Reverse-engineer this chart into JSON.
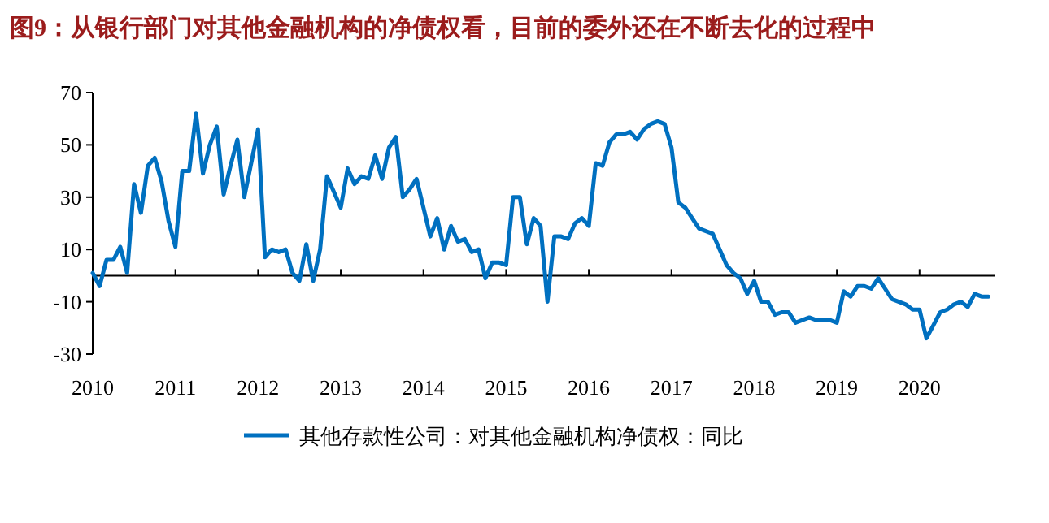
{
  "chart_data": {
    "type": "line",
    "title": "图9：从银行部门对其他金融机构的净债权看，目前的委外还在不断去化的过程中",
    "x": [
      "2010-01",
      "2010-02",
      "2010-03",
      "2010-04",
      "2010-05",
      "2010-06",
      "2010-07",
      "2010-08",
      "2010-09",
      "2010-10",
      "2010-11",
      "2010-12",
      "2011-01",
      "2011-02",
      "2011-03",
      "2011-04",
      "2011-05",
      "2011-06",
      "2011-07",
      "2011-08",
      "2011-09",
      "2011-10",
      "2011-11",
      "2011-12",
      "2012-01",
      "2012-02",
      "2012-03",
      "2012-04",
      "2012-05",
      "2012-06",
      "2012-07",
      "2012-08",
      "2012-09",
      "2012-10",
      "2012-11",
      "2012-12",
      "2013-01",
      "2013-02",
      "2013-03",
      "2013-04",
      "2013-05",
      "2013-06",
      "2013-07",
      "2013-08",
      "2013-09",
      "2013-10",
      "2013-11",
      "2013-12",
      "2014-01",
      "2014-02",
      "2014-03",
      "2014-04",
      "2014-05",
      "2014-06",
      "2014-07",
      "2014-08",
      "2014-09",
      "2014-10",
      "2014-11",
      "2014-12",
      "2015-01",
      "2015-02",
      "2015-03",
      "2015-04",
      "2015-05",
      "2015-06",
      "2015-07",
      "2015-08",
      "2015-09",
      "2015-10",
      "2015-11",
      "2015-12",
      "2016-01",
      "2016-02",
      "2016-03",
      "2016-04",
      "2016-05",
      "2016-06",
      "2016-07",
      "2016-08",
      "2016-09",
      "2016-10",
      "2016-11",
      "2016-12",
      "2017-01",
      "2017-02",
      "2017-03",
      "2017-04",
      "2017-05",
      "2017-06",
      "2017-07",
      "2017-08",
      "2017-09",
      "2017-10",
      "2017-11",
      "2017-12",
      "2018-01",
      "2018-02",
      "2018-03",
      "2018-04",
      "2018-05",
      "2018-06",
      "2018-07",
      "2018-08",
      "2018-09",
      "2018-10",
      "2018-11",
      "2018-12",
      "2019-01",
      "2019-02",
      "2019-03",
      "2019-04",
      "2019-05",
      "2019-06",
      "2019-07",
      "2019-08",
      "2019-09",
      "2019-10",
      "2019-11",
      "2019-12",
      "2020-01",
      "2020-02",
      "2020-03",
      "2020-04",
      "2020-05",
      "2020-06",
      "2020-07",
      "2020-08",
      "2020-09",
      "2020-10",
      "2020-11"
    ],
    "series": [
      {
        "name": "其他存款性公司：对其他金融机构净债权：同比",
        "color": "#0070c0",
        "values": [
          1,
          -4,
          6,
          6,
          11,
          1,
          35,
          24,
          42,
          45,
          36,
          21,
          11,
          40,
          40,
          62,
          39,
          50,
          57,
          31,
          42,
          52,
          30,
          43,
          56,
          7,
          10,
          9,
          10,
          1,
          -2,
          12,
          -2,
          10,
          38,
          32,
          26,
          41,
          35,
          38,
          37,
          46,
          37,
          49,
          53,
          30,
          33,
          37,
          26,
          15,
          22,
          10,
          19,
          13,
          14,
          9,
          10,
          -1,
          5,
          5,
          4,
          30,
          30,
          12,
          22,
          19,
          -10,
          15,
          15,
          14,
          20,
          22,
          19,
          43,
          42,
          51,
          54,
          54,
          55,
          52,
          56,
          58,
          59,
          58,
          49,
          28,
          26,
          22,
          18,
          17,
          16,
          10,
          4,
          1,
          -1,
          -7,
          -2,
          -10,
          -10,
          -15,
          -14,
          -14,
          -18,
          -17,
          -16,
          -17,
          -17,
          -17,
          -18,
          -6,
          -8,
          -4,
          -4,
          -5,
          -1,
          -5,
          -9,
          -10,
          -11,
          -13,
          -13,
          -24,
          -19,
          -14,
          -13,
          -11,
          -10,
          -12,
          -7,
          -8,
          -8
        ]
      }
    ],
    "xlim": [
      "2010-01",
      "2020-12"
    ],
    "xticks": [
      "2010",
      "2011",
      "2012",
      "2013",
      "2014",
      "2015",
      "2016",
      "2017",
      "2018",
      "2019",
      "2020"
    ],
    "ylim": [
      -30,
      70
    ],
    "yticks": [
      -30,
      -10,
      10,
      30,
      50,
      70
    ],
    "grid": false,
    "legend": "bottom",
    "marker": "none",
    "line_style": "solid"
  }
}
